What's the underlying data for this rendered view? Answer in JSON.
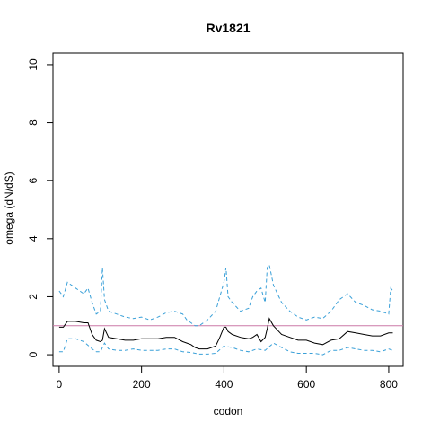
{
  "chart_data": {
    "type": "line",
    "title": "Rv1821",
    "xlabel": "codon",
    "ylabel": "omega (dN/dS)",
    "xlim": [
      -15,
      835
    ],
    "ylim": [
      -0.4,
      10.4
    ],
    "xticks": [
      0,
      200,
      400,
      600,
      800
    ],
    "yticks": [
      0,
      2,
      4,
      6,
      8,
      10
    ],
    "reference_line": {
      "y": 1,
      "color": "#cc79a7"
    },
    "colors": {
      "estimate": "#000000",
      "interval": "#3aa0d8"
    },
    "series": [
      {
        "role": "estimate",
        "style": "solid",
        "x": [
          0,
          10,
          20,
          40,
          60,
          70,
          80,
          90,
          100,
          105,
          110,
          120,
          140,
          160,
          180,
          200,
          220,
          240,
          260,
          280,
          300,
          310,
          320,
          330,
          340,
          360,
          380,
          390,
          400,
          405,
          410,
          420,
          440,
          460,
          470,
          480,
          490,
          500,
          505,
          510,
          520,
          540,
          560,
          580,
          600,
          620,
          640,
          660,
          680,
          700,
          720,
          740,
          760,
          780,
          800,
          810
        ],
        "y": [
          0.95,
          0.95,
          1.15,
          1.15,
          1.1,
          1.1,
          0.7,
          0.5,
          0.45,
          0.5,
          0.9,
          0.6,
          0.55,
          0.5,
          0.5,
          0.55,
          0.55,
          0.55,
          0.6,
          0.6,
          0.45,
          0.4,
          0.35,
          0.25,
          0.2,
          0.2,
          0.3,
          0.6,
          0.95,
          0.95,
          0.8,
          0.7,
          0.6,
          0.55,
          0.6,
          0.7,
          0.45,
          0.6,
          0.9,
          1.25,
          1.0,
          0.7,
          0.6,
          0.5,
          0.5,
          0.4,
          0.35,
          0.5,
          0.55,
          0.8,
          0.75,
          0.7,
          0.65,
          0.65,
          0.75,
          0.75
        ]
      },
      {
        "role": "upper",
        "style": "dashed",
        "x": [
          0,
          5,
          10,
          20,
          40,
          60,
          70,
          80,
          90,
          100,
          105,
          110,
          120,
          140,
          160,
          180,
          200,
          220,
          240,
          260,
          280,
          300,
          310,
          320,
          330,
          340,
          360,
          380,
          390,
          400,
          405,
          410,
          420,
          440,
          460,
          470,
          480,
          490,
          500,
          505,
          510,
          520,
          540,
          560,
          580,
          600,
          620,
          640,
          660,
          680,
          700,
          720,
          740,
          760,
          780,
          800,
          805,
          810
        ],
        "y": [
          2.2,
          2.1,
          2.0,
          2.5,
          2.3,
          2.1,
          2.3,
          1.8,
          1.4,
          1.5,
          3.0,
          1.9,
          1.5,
          1.4,
          1.3,
          1.25,
          1.3,
          1.2,
          1.3,
          1.45,
          1.5,
          1.4,
          1.2,
          1.1,
          1.0,
          1.0,
          1.2,
          1.5,
          2.0,
          2.5,
          3.0,
          2.0,
          1.8,
          1.5,
          1.6,
          2.0,
          2.2,
          2.3,
          1.8,
          3.0,
          3.1,
          2.4,
          1.8,
          1.5,
          1.3,
          1.2,
          1.3,
          1.25,
          1.5,
          1.9,
          2.1,
          1.8,
          1.7,
          1.55,
          1.5,
          1.4,
          2.3,
          2.2
        ]
      },
      {
        "role": "lower",
        "style": "dashed",
        "x": [
          0,
          10,
          20,
          40,
          60,
          80,
          90,
          100,
          110,
          120,
          140,
          160,
          180,
          200,
          220,
          240,
          260,
          280,
          300,
          320,
          330,
          340,
          360,
          380,
          400,
          420,
          440,
          460,
          480,
          500,
          520,
          540,
          560,
          580,
          600,
          620,
          640,
          660,
          680,
          700,
          720,
          740,
          760,
          780,
          800,
          810
        ],
        "y": [
          0.1,
          0.1,
          0.55,
          0.55,
          0.45,
          0.2,
          0.1,
          0.1,
          0.4,
          0.2,
          0.15,
          0.15,
          0.2,
          0.15,
          0.15,
          0.15,
          0.2,
          0.2,
          0.1,
          0.08,
          0.05,
          0.02,
          0.02,
          0.05,
          0.3,
          0.25,
          0.15,
          0.1,
          0.2,
          0.15,
          0.4,
          0.25,
          0.1,
          0.05,
          0.05,
          0.05,
          0.0,
          0.15,
          0.15,
          0.25,
          0.2,
          0.15,
          0.15,
          0.1,
          0.2,
          0.15
        ]
      }
    ]
  }
}
